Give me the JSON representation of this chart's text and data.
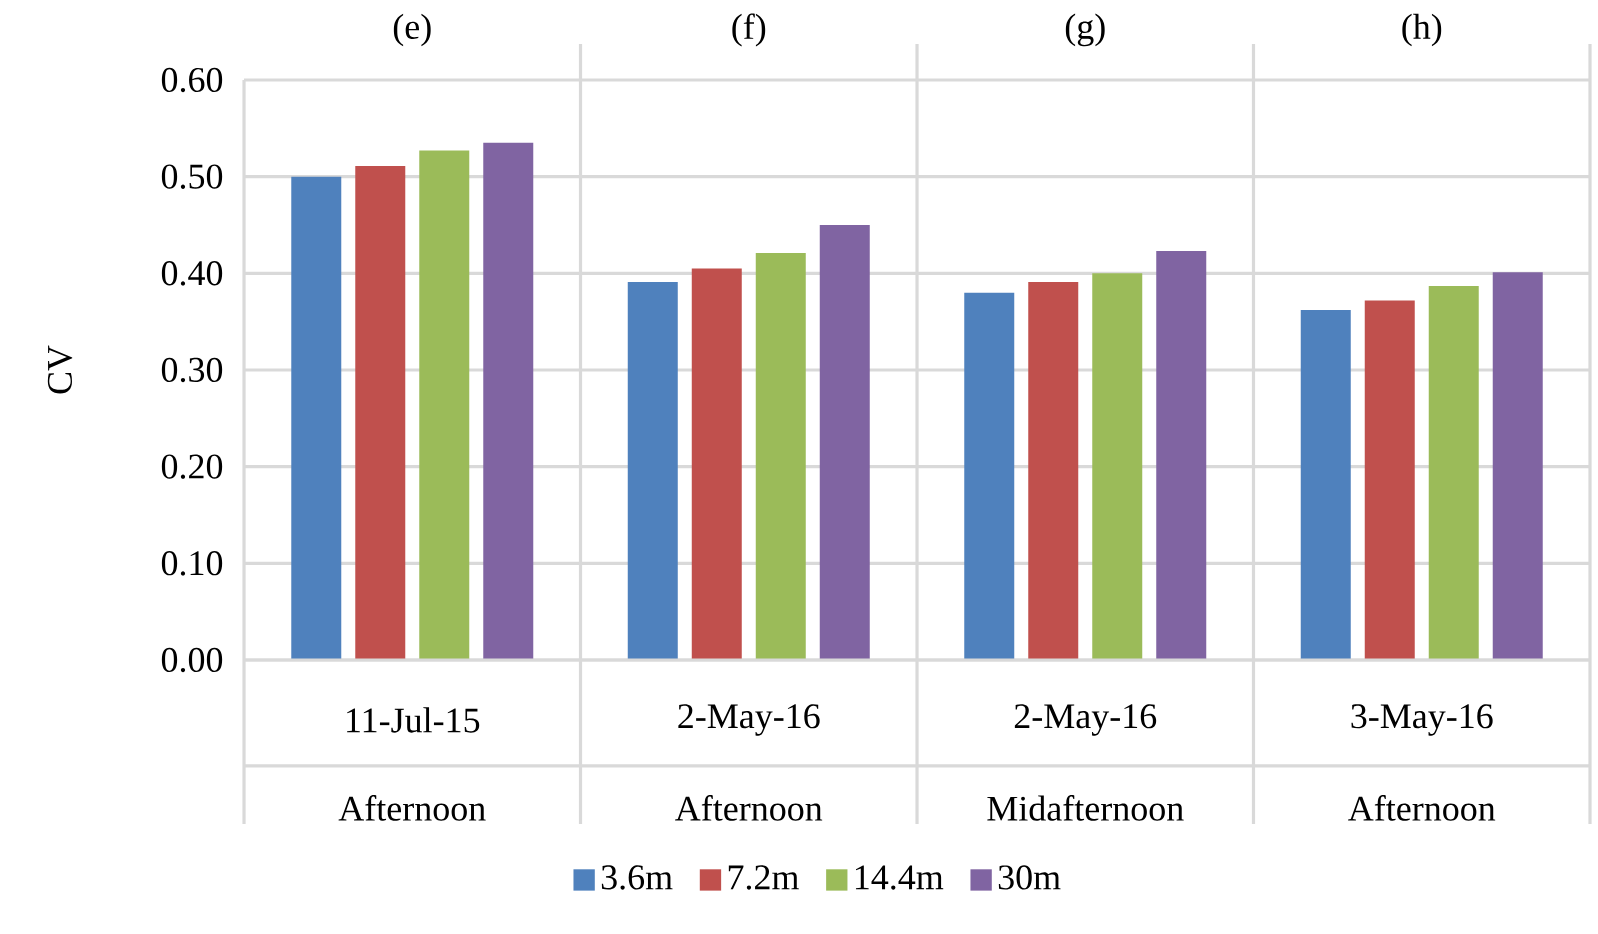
{
  "chart_data": {
    "type": "bar",
    "categories": [
      "11-Jul-15",
      "2-May-16",
      "2-May-16",
      "3-May-16"
    ],
    "series": [
      {
        "name": "3.6m",
        "color": "#4f81bd",
        "values": [
          0.5,
          0.391,
          0.38,
          0.362
        ]
      },
      {
        "name": "7.2m",
        "color": "#c0504d",
        "values": [
          0.511,
          0.405,
          0.391,
          0.372
        ]
      },
      {
        "name": "14.4m",
        "color": "#9bbb59",
        "values": [
          0.527,
          0.421,
          0.4,
          0.387
        ]
      },
      {
        "name": "30m",
        "color": "#8064a2",
        "values": [
          0.535,
          0.45,
          0.423,
          0.401
        ]
      }
    ],
    "ylabel": "CV",
    "ylim": [
      0,
      0.6
    ],
    "yticks": [
      {
        "value": 0,
        "label": "0.00"
      },
      {
        "value": 0.1,
        "label": "0.10"
      },
      {
        "value": 0.2,
        "label": "0.20"
      },
      {
        "value": 0.3,
        "label": "0.30"
      },
      {
        "value": 0.4,
        "label": "0.40"
      },
      {
        "value": 0.5,
        "label": "0.50"
      },
      {
        "value": 0.6,
        "label": "0.60"
      }
    ],
    "annotations": [
      "(e)",
      "(f)",
      "(g)",
      "(h)",
      "Afternoon",
      "Afternoon",
      "Midafternoon",
      "Afternoon"
    ],
    "grid": "y",
    "legend": "bottom"
  }
}
